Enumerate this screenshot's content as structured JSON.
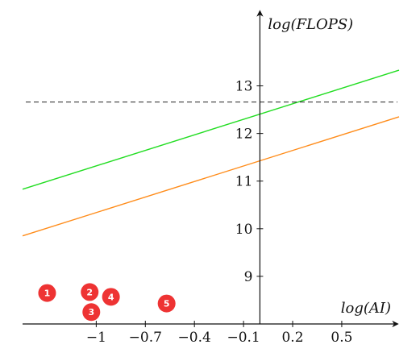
{
  "chart_data": {
    "type": "line",
    "xlabel": "log(AI)",
    "ylabel": "log(FLOPS)",
    "x_ticks": [
      "−1",
      "−0.7",
      "−0.4",
      "−0.1",
      "0.2",
      "0.5"
    ],
    "x_tick_values": [
      -1,
      -0.7,
      -0.4,
      -0.1,
      0.2,
      0.5
    ],
    "y_ticks": [
      "9",
      "10",
      "11",
      "12",
      "13"
    ],
    "y_tick_values": [
      9,
      10,
      11,
      12,
      13
    ],
    "xlim": [
      -1.45,
      0.85
    ],
    "ylim": [
      8,
      14.6
    ],
    "grid": false,
    "series": [
      {
        "color": "#22dd22",
        "x": [
          -1.45,
          0.85
        ],
        "y": [
          10.83,
          13.33
        ]
      },
      {
        "color": "#ff8c1a",
        "x": [
          -1.45,
          0.85
        ],
        "y": [
          9.85,
          12.35
        ]
      }
    ],
    "hline": {
      "y": 12.66,
      "style": "dashed",
      "color": "#222222"
    },
    "markers": {
      "color": "#ee3333",
      "points": [
        {
          "label": "1",
          "x": -1.3,
          "y": 8.65
        },
        {
          "label": "2",
          "x": -1.04,
          "y": 8.67
        },
        {
          "label": "3",
          "x": -1.03,
          "y": 8.25
        },
        {
          "label": "4",
          "x": -0.91,
          "y": 8.57
        },
        {
          "label": "5",
          "x": -0.57,
          "y": 8.43
        }
      ]
    }
  }
}
